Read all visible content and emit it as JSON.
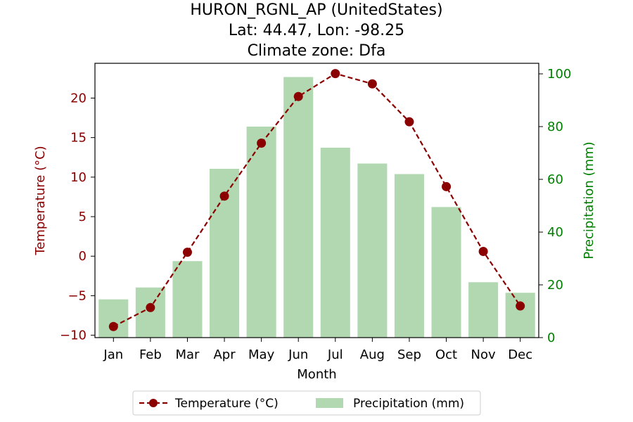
{
  "chart_data": {
    "type": "bar+line",
    "title_lines": [
      "HURON_RGNL_AP (UnitedStates)",
      "Lat: 44.47, Lon: -98.25",
      "Climate zone: Dfa"
    ],
    "xlabel": "Month",
    "categories": [
      "Jan",
      "Feb",
      "Mar",
      "Apr",
      "May",
      "Jun",
      "Jul",
      "Aug",
      "Sep",
      "Oct",
      "Nov",
      "Dec"
    ],
    "temperature": {
      "name": "Temperature (°C)",
      "axis_label": "Temperature (°C)",
      "color": "#8b0000",
      "values": [
        -8.9,
        -6.5,
        0.5,
        7.6,
        14.3,
        20.2,
        23.1,
        21.8,
        17.0,
        8.8,
        0.6,
        -6.3
      ],
      "ylim": [
        -10.3,
        24.4
      ],
      "ticks": [
        -10,
        -5,
        0,
        5,
        10,
        15,
        20
      ],
      "tick_labels": [
        "−10",
        "−5",
        "0",
        "5",
        "10",
        "15",
        "20"
      ]
    },
    "precipitation": {
      "name": "Precipitation (mm)",
      "axis_label": "Precipitation (mm)",
      "color": "#008000",
      "bar_color": "#b2d8b2",
      "values": [
        14.5,
        19.0,
        29.0,
        64.0,
        80.0,
        98.8,
        72.0,
        66.0,
        62.0,
        49.5,
        21.0,
        17.0
      ],
      "ylim": [
        0,
        104
      ],
      "ticks": [
        0,
        20,
        40,
        60,
        80,
        100
      ],
      "tick_labels": [
        "0",
        "20",
        "40",
        "60",
        "80",
        "100"
      ]
    },
    "legend": {
      "placement": "bottom-center"
    }
  }
}
